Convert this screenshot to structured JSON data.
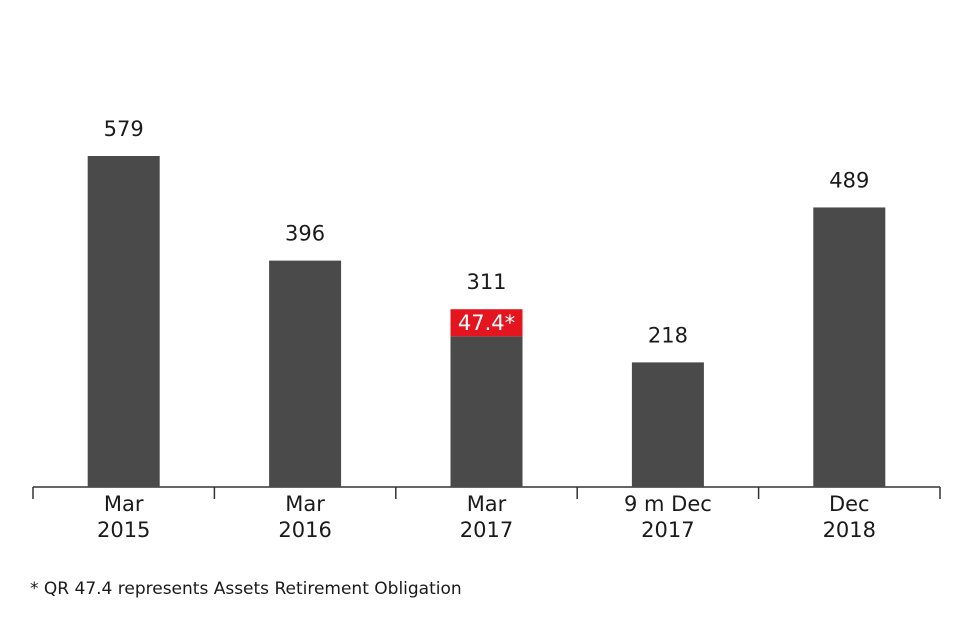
{
  "chart_data": {
    "type": "bar",
    "stacked": true,
    "categories": [
      [
        "Mar",
        "2015"
      ],
      [
        "Mar",
        "2016"
      ],
      [
        "Mar",
        "2017"
      ],
      [
        "9 m Dec",
        "2017"
      ],
      [
        "Dec",
        "2018"
      ]
    ],
    "series": [
      {
        "color": "#4a4a4b",
        "values": [
          579,
          396,
          263.6,
          218,
          489
        ]
      },
      {
        "color": "#e4151f",
        "values": [
          null,
          null,
          47.4,
          null,
          null
        ],
        "value_labels": [
          null,
          null,
          "47.4*",
          null,
          null
        ]
      }
    ],
    "totals": [
      579,
      396,
      311,
      218,
      489
    ],
    "ylim": [
      0,
      600
    ],
    "note": "* QR 47.4 represents Assets Retirement Obligation"
  }
}
